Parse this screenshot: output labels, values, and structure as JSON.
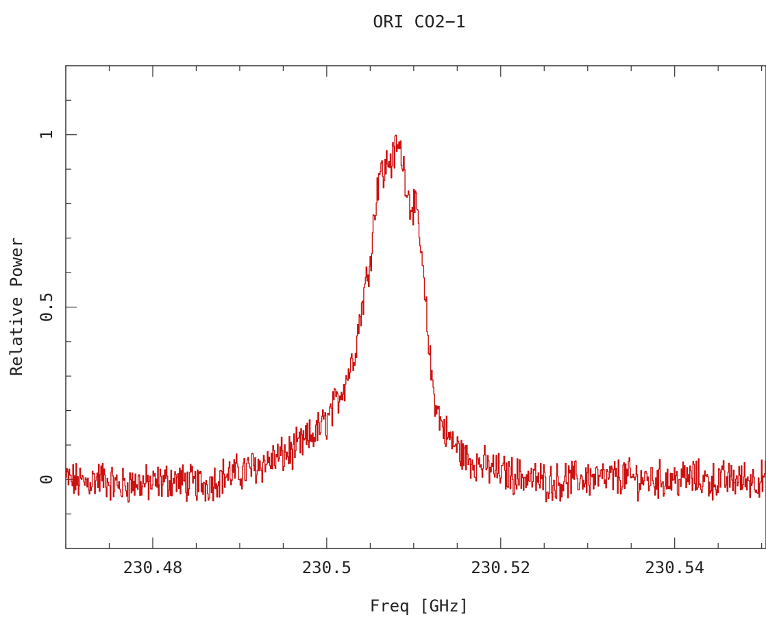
{
  "chart_data": {
    "type": "line",
    "title": "ORI CO2−1",
    "xlabel": "Freq [GHz]",
    "ylabel": "Relative Power",
    "xlim": [
      230.47,
      230.5505
    ],
    "ylim": [
      -0.2,
      1.2
    ],
    "x_ticks": [
      {
        "value": 230.48,
        "label": "230.48"
      },
      {
        "value": 230.5,
        "label": "230.5"
      },
      {
        "value": 230.52,
        "label": "230.52"
      },
      {
        "value": 230.54,
        "label": "230.54"
      }
    ],
    "y_ticks": [
      {
        "value": 0,
        "label": "0"
      },
      {
        "value": 0.5,
        "label": "0.5"
      },
      {
        "value": 1,
        "label": "1"
      }
    ],
    "grid": false,
    "color": "#cc1111",
    "series": [
      {
        "x": [
          230.47,
          230.472,
          230.474,
          230.476,
          230.478,
          230.48,
          230.482,
          230.484,
          230.486,
          230.488,
          230.49,
          230.492,
          230.494,
          230.496,
          230.498,
          230.5,
          230.501,
          230.502,
          230.503,
          230.504,
          230.505,
          230.5055,
          230.506,
          230.5065,
          230.507,
          230.5075,
          230.508,
          230.5085,
          230.509,
          230.5095,
          230.51,
          230.5105,
          230.511,
          230.5115,
          230.512,
          230.5125,
          230.513,
          230.514,
          230.515,
          230.516,
          230.518,
          230.52,
          230.522,
          230.524,
          230.526,
          230.528,
          230.53,
          230.532,
          230.534,
          230.536,
          230.538,
          230.54,
          230.542,
          230.544,
          230.546,
          230.548,
          230.55
        ],
        "y": [
          0.0,
          -0.01,
          0.005,
          -0.02,
          -0.01,
          -0.015,
          0.0,
          -0.01,
          -0.015,
          0.01,
          0.02,
          0.04,
          0.06,
          0.08,
          0.12,
          0.17,
          0.22,
          0.28,
          0.35,
          0.5,
          0.65,
          0.78,
          0.9,
          0.88,
          0.93,
          0.92,
          0.97,
          0.95,
          0.88,
          0.8,
          0.8,
          0.74,
          0.6,
          0.45,
          0.3,
          0.22,
          0.17,
          0.12,
          0.09,
          0.06,
          0.04,
          0.02,
          0.01,
          0.0,
          -0.01,
          0.0,
          0.005,
          0.0,
          0.01,
          0.0,
          0.0,
          0.0,
          0.005,
          -0.005,
          0.0,
          0.0,
          0.0
        ]
      }
    ]
  }
}
